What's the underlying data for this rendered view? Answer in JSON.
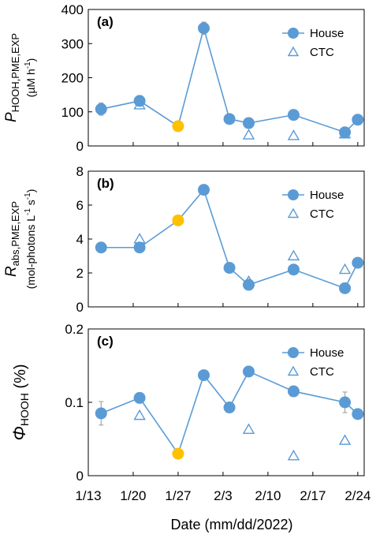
{
  "colors": {
    "house": "#5b9bd5",
    "highlight": "#ffc000",
    "ctc": "#5b9bd5",
    "axis": "#000000",
    "errorbar": "#a6a6a6"
  },
  "chart_data": [
    {
      "type": "line",
      "panel_label": "(a)",
      "ylabel": {
        "symbol": "P",
        "subscript": "HOOH,PME,EXP",
        "units": "(µM h",
        "units_sup": "-1",
        "units_end": ")"
      },
      "ylim": [
        0,
        400
      ],
      "yticks": [
        "0",
        "100",
        "200",
        "300",
        "400"
      ],
      "legend": {
        "house": "House",
        "ctc": "CTC",
        "placement": "top-right"
      },
      "series": [
        {
          "name": "House",
          "marker": "circle",
          "connected": true,
          "points": [
            {
              "x": "2022-01-15",
              "y": 108,
              "err": 18
            },
            {
              "x": "2022-01-21",
              "y": 132,
              "err": 8
            },
            {
              "x": "2022-01-27",
              "y": 58,
              "highlight": true
            },
            {
              "x": "2022-01-31",
              "y": 345,
              "err": 18
            },
            {
              "x": "2022-02-04",
              "y": 79
            },
            {
              "x": "2022-02-07",
              "y": 67
            },
            {
              "x": "2022-02-14",
              "y": 91
            },
            {
              "x": "2022-02-22",
              "y": 40
            },
            {
              "x": "2022-02-24",
              "y": 77
            }
          ]
        },
        {
          "name": "CTC",
          "marker": "triangle-open",
          "connected": false,
          "points": [
            {
              "x": "2022-01-21",
              "y": 120
            },
            {
              "x": "2022-02-07",
              "y": 32
            },
            {
              "x": "2022-02-14",
              "y": 30
            },
            {
              "x": "2022-02-22",
              "y": 35
            }
          ]
        }
      ]
    },
    {
      "type": "line",
      "panel_label": "(b)",
      "ylabel": {
        "symbol": "R",
        "subscript": "abs,PME,EXP",
        "units": "(mol-photons L",
        "units_sup": "-1",
        "units_mid": " s",
        "units_sup2": "-1",
        "units_end": ")"
      },
      "ylim": [
        0,
        8
      ],
      "yticks": [
        "0",
        "2",
        "4",
        "6",
        "8"
      ],
      "legend": {
        "house": "House",
        "ctc": "CTC",
        "placement": "top-right"
      },
      "series": [
        {
          "name": "House",
          "marker": "circle",
          "connected": true,
          "points": [
            {
              "x": "2022-01-15",
              "y": 3.5
            },
            {
              "x": "2022-01-21",
              "y": 3.5
            },
            {
              "x": "2022-01-27",
              "y": 5.1,
              "highlight": true
            },
            {
              "x": "2022-01-31",
              "y": 6.9
            },
            {
              "x": "2022-02-04",
              "y": 2.3
            },
            {
              "x": "2022-02-07",
              "y": 1.3
            },
            {
              "x": "2022-02-14",
              "y": 2.2
            },
            {
              "x": "2022-02-22",
              "y": 1.1
            },
            {
              "x": "2022-02-24",
              "y": 2.6
            }
          ]
        },
        {
          "name": "CTC",
          "marker": "triangle-open",
          "connected": false,
          "points": [
            {
              "x": "2022-01-21",
              "y": 4.0
            },
            {
              "x": "2022-02-07",
              "y": 1.5
            },
            {
              "x": "2022-02-14",
              "y": 3.0
            },
            {
              "x": "2022-02-22",
              "y": 2.2
            }
          ]
        }
      ]
    },
    {
      "type": "line",
      "panel_label": "(c)",
      "ylabel": {
        "symbol": "Φ",
        "subscript": "HOOH",
        "units_after": " (%)"
      },
      "ylim": [
        0,
        0.2
      ],
      "yticks": [
        "0",
        "0.1",
        "0.2"
      ],
      "legend": {
        "house": "House",
        "ctc": "CTC",
        "placement": "top-right"
      },
      "series": [
        {
          "name": "House",
          "marker": "circle",
          "connected": true,
          "points": [
            {
              "x": "2022-01-15",
              "y": 0.085,
              "err": 0.016
            },
            {
              "x": "2022-01-21",
              "y": 0.106,
              "err": 0.004
            },
            {
              "x": "2022-01-27",
              "y": 0.03,
              "highlight": true
            },
            {
              "x": "2022-01-31",
              "y": 0.137,
              "err": 0.007
            },
            {
              "x": "2022-02-04",
              "y": 0.093
            },
            {
              "x": "2022-02-07",
              "y": 0.142,
              "err": 0.007
            },
            {
              "x": "2022-02-14",
              "y": 0.115
            },
            {
              "x": "2022-02-22",
              "y": 0.1,
              "err": 0.014
            },
            {
              "x": "2022-02-24",
              "y": 0.084
            }
          ]
        },
        {
          "name": "CTC",
          "marker": "triangle-open",
          "connected": false,
          "points": [
            {
              "x": "2022-01-21",
              "y": 0.082
            },
            {
              "x": "2022-02-07",
              "y": 0.063
            },
            {
              "x": "2022-02-14",
              "y": 0.027
            },
            {
              "x": "2022-02-22",
              "y": 0.048
            }
          ]
        }
      ]
    }
  ],
  "x_axis": {
    "title": "Date (mm/dd/2022)",
    "range": [
      "2022-01-13",
      "2022-02-25"
    ],
    "ticks": [
      {
        "date": "2022-01-13",
        "label": "1/13"
      },
      {
        "date": "2022-01-20",
        "label": "1/20"
      },
      {
        "date": "2022-01-27",
        "label": "1/27"
      },
      {
        "date": "2022-02-03",
        "label": "2/3"
      },
      {
        "date": "2022-02-10",
        "label": "2/10"
      },
      {
        "date": "2022-02-17",
        "label": "2/17"
      },
      {
        "date": "2022-02-24",
        "label": "2/24"
      }
    ]
  }
}
